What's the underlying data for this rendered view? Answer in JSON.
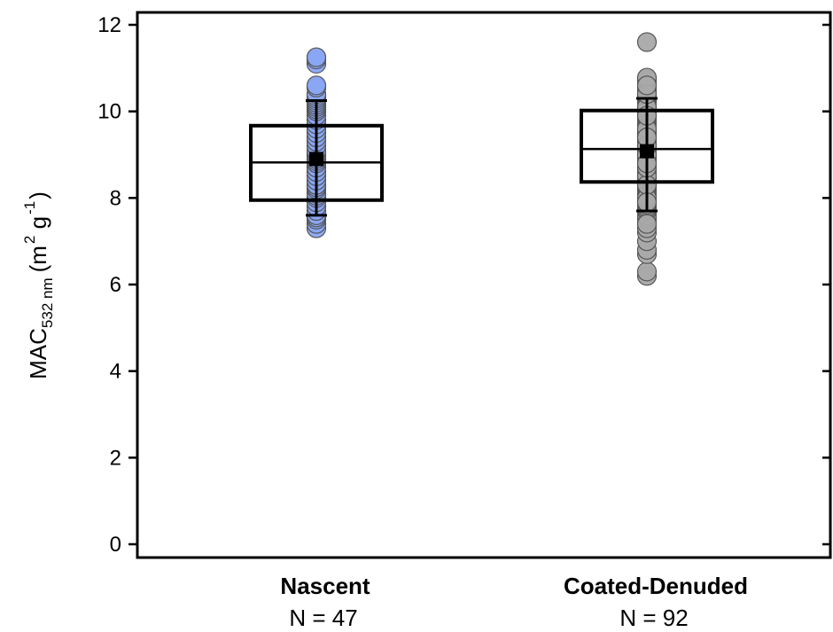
{
  "chart_data": {
    "type": "box",
    "ylabel": {
      "base": "MAC",
      "subscript": "532 nm",
      "unit_open": "(m",
      "unit_exp1": "2",
      "unit_mid": " g",
      "unit_exp2": "-1",
      "unit_close": ")"
    },
    "ylim": [
      0,
      12
    ],
    "yticks": [
      0,
      2,
      4,
      6,
      8,
      10,
      12
    ],
    "grid": false,
    "categories": [
      {
        "name": "Nascent",
        "n_label": "N = 47",
        "color": "#8aa7f5",
        "box": {
          "q1": 7.95,
          "median": 8.82,
          "q3": 9.67
        },
        "mean": 8.9,
        "error": {
          "low": 7.6,
          "high": 10.25
        },
        "points": [
          7.3,
          7.4,
          7.5,
          7.55,
          7.6,
          7.7,
          7.8,
          7.9,
          8.0,
          8.05,
          8.1,
          8.2,
          8.25,
          8.3,
          8.4,
          8.5,
          8.6,
          8.7,
          8.8,
          8.85,
          8.9,
          8.95,
          9.0,
          9.05,
          9.1,
          9.2,
          9.3,
          9.4,
          9.5,
          9.6,
          9.7,
          9.8,
          9.9,
          10.0,
          10.05,
          10.1,
          10.15,
          10.2,
          10.25,
          10.3,
          10.35,
          10.4,
          10.55,
          10.6,
          11.1,
          11.2,
          11.25
        ]
      },
      {
        "name": "Coated-Denuded",
        "n_label": "N = 92",
        "color": "#a9a9a9",
        "box": {
          "q1": 8.37,
          "median": 9.13,
          "q3": 10.02
        },
        "mean": 9.08,
        "error": {
          "low": 7.7,
          "high": 10.3
        },
        "points": [
          6.2,
          6.3,
          6.7,
          6.8,
          7.0,
          7.2,
          7.3,
          7.5,
          7.55,
          7.6,
          7.7,
          7.75,
          7.8,
          7.85,
          7.9,
          7.95,
          8.0,
          8.05,
          8.1,
          8.15,
          8.2,
          8.25,
          8.3,
          8.35,
          8.4,
          8.45,
          8.5,
          8.55,
          8.6,
          8.65,
          8.7,
          8.75,
          8.8,
          8.85,
          8.9,
          8.95,
          9.0,
          9.05,
          9.1,
          9.15,
          9.2,
          9.25,
          9.3,
          9.35,
          9.4,
          9.45,
          9.5,
          9.55,
          9.6,
          9.65,
          9.7,
          9.75,
          9.8,
          9.85,
          9.9,
          9.95,
          10.0,
          10.05,
          10.1,
          10.15,
          10.2,
          10.25,
          10.3,
          10.35,
          10.4,
          10.45,
          10.5,
          10.55,
          10.6,
          10.65,
          10.7,
          10.72,
          10.75,
          10.78,
          8.0,
          8.5,
          9.0,
          9.5,
          10.0,
          8.3,
          8.7,
          9.2,
          9.6,
          10.1,
          7.9,
          8.8,
          9.4,
          9.9,
          10.4,
          10.6,
          7.4,
          11.6
        ]
      }
    ]
  }
}
